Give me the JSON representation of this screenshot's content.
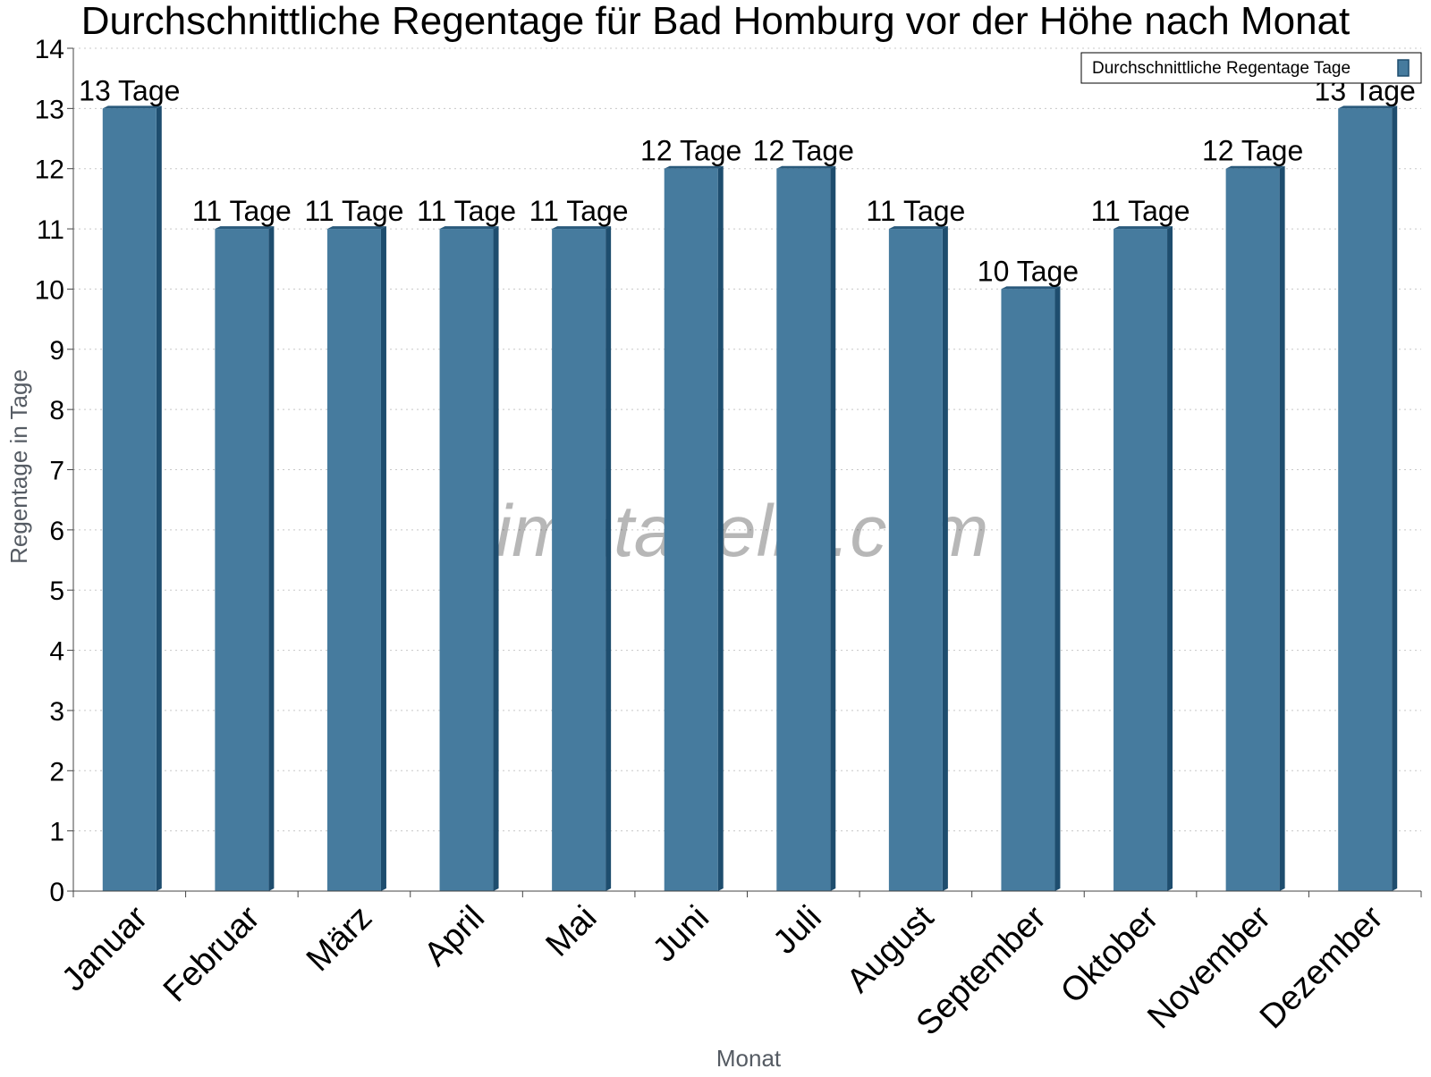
{
  "chart_data": {
    "type": "bar",
    "title": "Durchschnittliche Regentage für Bad Homburg vor der Höhe nach Monat",
    "xlabel": "Monat",
    "ylabel": "Regentage in Tage",
    "categories": [
      "Januar",
      "Februar",
      "März",
      "April",
      "Mai",
      "Juni",
      "Juli",
      "August",
      "September",
      "Oktober",
      "November",
      "Dezember"
    ],
    "series": [
      {
        "name": "Durchschnittliche Regentage Tage",
        "values": [
          13,
          11,
          11,
          11,
          11,
          12,
          12,
          11,
          10,
          11,
          12,
          13
        ],
        "color": "#467b9e"
      }
    ],
    "data_labels": [
      "13 Tage",
      "11 Tage",
      "11 Tage",
      "11 Tage",
      "11 Tage",
      "12 Tage",
      "12 Tage",
      "11 Tage",
      "10 Tage",
      "11 Tage",
      "12 Tage",
      "13 Tage"
    ],
    "ylim": [
      0,
      14
    ],
    "yticks": [
      0,
      1,
      2,
      3,
      4,
      5,
      6,
      7,
      8,
      9,
      10,
      11,
      12,
      13,
      14
    ],
    "grid": true,
    "legend_position": "top-right"
  },
  "watermark": "klimatabelle.com",
  "colors": {
    "bar_face": "#467b9e",
    "bar_side": "#1e4d6e",
    "bar_top": "#2a5a7c",
    "axis": "#444444",
    "grid": "#c8c8c8"
  }
}
